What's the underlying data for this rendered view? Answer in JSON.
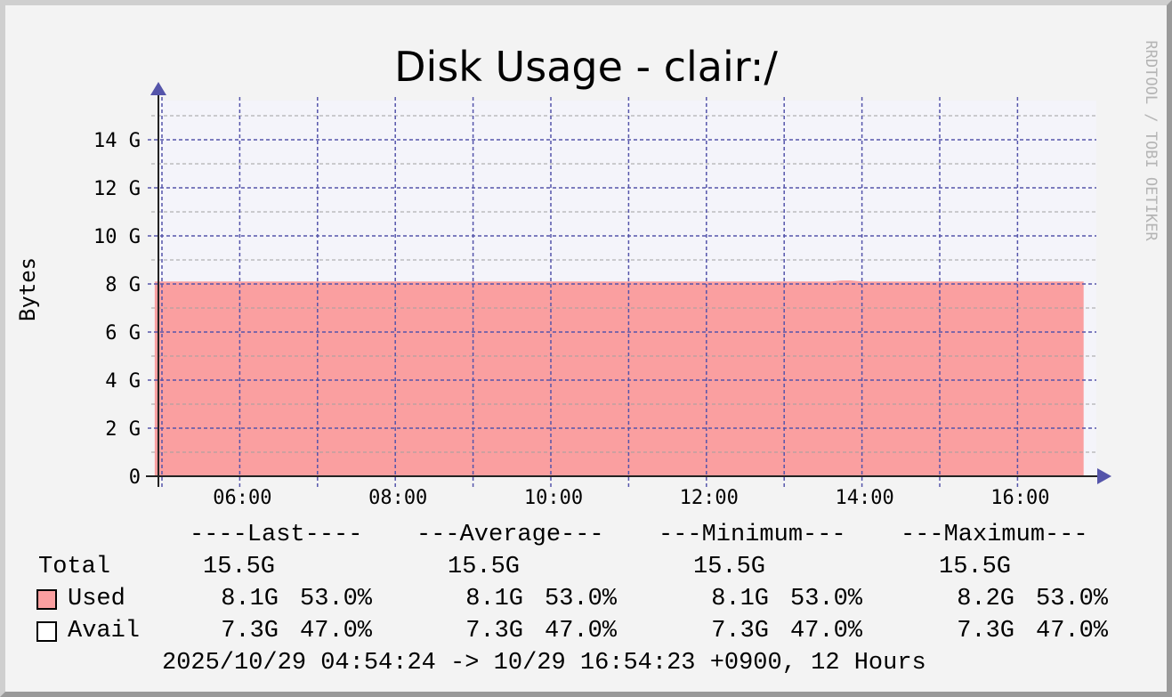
{
  "chart_data": {
    "type": "area",
    "title": "Disk Usage - clair:/",
    "ylabel": "Bytes",
    "watermark": "RRDTOOL / TOBI OETIKER",
    "ylim": [
      0,
      15.5
    ],
    "y_unit": "G",
    "yticks": [
      {
        "v": 0,
        "label": "0"
      },
      {
        "v": 2,
        "label": "2 G"
      },
      {
        "v": 4,
        "label": "4 G"
      },
      {
        "v": 6,
        "label": "6 G"
      },
      {
        "v": 8,
        "label": "8 G"
      },
      {
        "v": 10,
        "label": "10 G"
      },
      {
        "v": 12,
        "label": "12 G"
      },
      {
        "v": 14,
        "label": "14 G"
      }
    ],
    "xrange": [
      "04:54:24",
      "16:54:23"
    ],
    "xticks": [
      {
        "h": 6,
        "label": "06:00"
      },
      {
        "h": 8,
        "label": "08:00"
      },
      {
        "h": 10,
        "label": "10:00"
      },
      {
        "h": 12,
        "label": "12:00"
      },
      {
        "h": 14,
        "label": "14:00"
      },
      {
        "h": 16,
        "label": "16:00"
      }
    ],
    "grid": true,
    "series": [
      {
        "name": "Used",
        "color": "#fa9fa0",
        "x_hours": [
          4.907,
          13.6,
          13.75,
          13.85,
          14.0,
          16.85
        ],
        "values": [
          8.1,
          8.1,
          8.15,
          8.15,
          8.1,
          8.1
        ]
      }
    ],
    "legend": {
      "headers": [
        "----Last----",
        "---Average---",
        "---Minimum---",
        "---Maximum---"
      ],
      "rows": [
        {
          "label": "Total",
          "values": [
            "15.5G",
            "15.5G",
            "15.5G",
            "15.5G"
          ],
          "pcts": []
        },
        {
          "label": "Used",
          "color": "#fa9fa0",
          "values": [
            "8.1G",
            "8.1G",
            "8.1G",
            "8.2G"
          ],
          "pcts": [
            "53.0%",
            "53.0%",
            "53.0%",
            "53.0%"
          ]
        },
        {
          "label": "Avail",
          "color": "#ffffff",
          "values": [
            "7.3G",
            "7.3G",
            "7.3G",
            "7.3G"
          ],
          "pcts": [
            "47.0%",
            "47.0%",
            "47.0%",
            "47.0%"
          ]
        }
      ],
      "footer": "2025/10/29 04:54:24 -> 10/29 16:54:23 +0900, 12 Hours"
    },
    "colors": {
      "grid_major": "#5555aa",
      "grid_minor": "#a0a0a0",
      "plot_bg": "#f4f4fa",
      "axis_arrow": "#5555aa"
    }
  }
}
